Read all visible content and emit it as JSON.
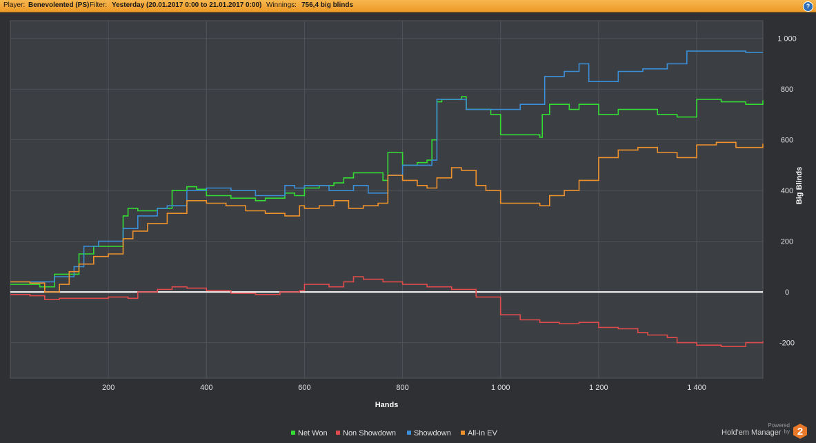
{
  "header": {
    "player_label": "Player:",
    "player_value": "Benevolented (PS)",
    "filter_label": "Filter:",
    "filter_value": "Yesterday (20.01.2017 0:00 to 21.01.2017 0:00)",
    "winnings_label": "Winnings:",
    "winnings_value": "756,4 big blinds",
    "help_icon": "question-icon",
    "help_glyph": "?"
  },
  "chart_data": {
    "type": "line",
    "title": "",
    "xlabel": "Hands",
    "ylabel": "Big Blinds",
    "xlim": [
      0,
      1535
    ],
    "ylim": [
      -340,
      1070
    ],
    "x_ticks": [
      200,
      400,
      600,
      800,
      1000,
      1200,
      1400
    ],
    "x_tick_labels": [
      "200",
      "400",
      "600",
      "800",
      "1 000",
      "1 200",
      "1 400"
    ],
    "y_ticks": [
      -200,
      0,
      200,
      400,
      600,
      800,
      1000
    ],
    "y_tick_labels": [
      "-200",
      "0",
      "200",
      "400",
      "600",
      "800",
      "1 000"
    ],
    "grid": true,
    "legend_position": "bottom-center",
    "zero_line_color": "#ffffff",
    "series": [
      {
        "name": "Net Won",
        "color": "#33dd33",
        "x": [
          0,
          40,
          60,
          90,
          130,
          140,
          170,
          200,
          230,
          240,
          260,
          300,
          330,
          360,
          380,
          400,
          450,
          500,
          520,
          560,
          580,
          600,
          630,
          660,
          680,
          700,
          720,
          760,
          770,
          800,
          830,
          850,
          860,
          870,
          880,
          920,
          930,
          980,
          1000,
          1040,
          1080,
          1085,
          1100,
          1140,
          1160,
          1200,
          1240,
          1280,
          1320,
          1360,
          1400,
          1450,
          1500,
          1535
        ],
        "y": [
          30,
          30,
          20,
          70,
          70,
          150,
          180,
          180,
          300,
          330,
          320,
          330,
          400,
          415,
          405,
          380,
          370,
          360,
          370,
          390,
          380,
          410,
          420,
          430,
          450,
          470,
          470,
          440,
          550,
          500,
          510,
          520,
          600,
          750,
          760,
          770,
          720,
          700,
          620,
          620,
          610,
          700,
          740,
          720,
          740,
          700,
          720,
          720,
          700,
          690,
          760,
          750,
          740,
          756
        ]
      },
      {
        "name": "Non Showdown",
        "color": "#e04b4b",
        "x": [
          0,
          40,
          70,
          100,
          150,
          200,
          240,
          260,
          300,
          330,
          360,
          400,
          450,
          500,
          550,
          590,
          600,
          650,
          680,
          700,
          720,
          760,
          800,
          850,
          900,
          950,
          1000,
          1040,
          1080,
          1120,
          1160,
          1200,
          1240,
          1280,
          1300,
          1340,
          1360,
          1400,
          1450,
          1500,
          1535
        ],
        "y": [
          -10,
          -15,
          -30,
          -25,
          -25,
          -20,
          -25,
          0,
          10,
          20,
          15,
          5,
          -5,
          -10,
          0,
          5,
          30,
          20,
          40,
          60,
          50,
          40,
          30,
          20,
          10,
          -20,
          -90,
          -110,
          -120,
          -125,
          -120,
          -140,
          -145,
          -160,
          -170,
          -180,
          -200,
          -210,
          -215,
          -200,
          -195
        ]
      },
      {
        "name": "Showdown",
        "color": "#3a8fd8",
        "x": [
          0,
          50,
          90,
          130,
          150,
          180,
          230,
          260,
          300,
          320,
          360,
          400,
          450,
          500,
          530,
          560,
          580,
          600,
          650,
          700,
          730,
          770,
          800,
          850,
          860,
          870,
          930,
          980,
          1040,
          1080,
          1090,
          1130,
          1160,
          1180,
          1240,
          1290,
          1340,
          1380,
          1400,
          1450,
          1500,
          1535
        ],
        "y": [
          40,
          40,
          60,
          100,
          180,
          200,
          250,
          300,
          330,
          340,
          400,
          410,
          400,
          380,
          380,
          420,
          410,
          420,
          400,
          420,
          390,
          460,
          500,
          500,
          520,
          760,
          720,
          720,
          740,
          740,
          850,
          870,
          900,
          830,
          870,
          880,
          900,
          950,
          950,
          950,
          945,
          945
        ]
      },
      {
        "name": "All-In EV",
        "color": "#f0922c",
        "x": [
          0,
          40,
          70,
          100,
          120,
          140,
          170,
          200,
          230,
          250,
          280,
          320,
          360,
          400,
          440,
          480,
          520,
          560,
          590,
          600,
          630,
          660,
          690,
          720,
          750,
          770,
          800,
          830,
          850,
          870,
          900,
          920,
          950,
          970,
          1000,
          1040,
          1080,
          1100,
          1130,
          1160,
          1200,
          1240,
          1280,
          1320,
          1360,
          1400,
          1440,
          1480,
          1535
        ],
        "y": [
          40,
          35,
          0,
          30,
          80,
          110,
          140,
          150,
          210,
          240,
          270,
          310,
          360,
          350,
          340,
          320,
          310,
          300,
          340,
          330,
          340,
          360,
          330,
          340,
          350,
          460,
          440,
          420,
          410,
          450,
          490,
          480,
          420,
          400,
          350,
          350,
          340,
          380,
          400,
          440,
          530,
          560,
          570,
          550,
          530,
          580,
          590,
          570,
          585
        ]
      }
    ]
  },
  "footer": {
    "powered_by": "Powered by",
    "brand": "Hold'em Manager",
    "brand_number": "2"
  }
}
